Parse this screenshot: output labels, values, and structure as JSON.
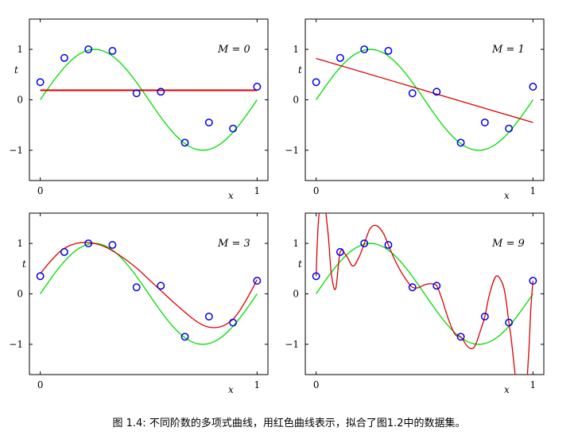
{
  "caption": "图 1.4: 不同阶数的多项式曲线，用红色曲线表示，拟合了图1.2中的数据集。",
  "colors": {
    "truth": "#00dd00",
    "fit": "#dd0000",
    "points": "#0000ee"
  },
  "chart_data": [
    {
      "type": "line",
      "annotation": "M = 0",
      "xlabel": "x",
      "ylabel": "t",
      "xlim": [
        -0.05,
        1.05
      ],
      "ylim": [
        -1.6,
        1.6
      ],
      "xticks": [
        0,
        1
      ],
      "yticks": [
        -1,
        0,
        1
      ],
      "points": {
        "x": [
          0,
          0.111,
          0.222,
          0.333,
          0.444,
          0.556,
          0.667,
          0.778,
          0.889,
          1.0
        ],
        "y": [
          0.35,
          0.83,
          1.0,
          0.97,
          0.13,
          0.16,
          -0.85,
          -0.45,
          -0.57,
          0.26
        ]
      },
      "truth_curve": "sin(2*pi*x)",
      "fit_curve": {
        "x": [
          0,
          1
        ],
        "y": [
          0.19,
          0.19
        ]
      }
    },
    {
      "type": "line",
      "annotation": "M = 1",
      "xlabel": "x",
      "ylabel": "t",
      "xlim": [
        -0.05,
        1.05
      ],
      "ylim": [
        -1.6,
        1.6
      ],
      "xticks": [
        0,
        1
      ],
      "yticks": [
        -1,
        0,
        1
      ],
      "points": {
        "x": [
          0,
          0.111,
          0.222,
          0.333,
          0.444,
          0.556,
          0.667,
          0.778,
          0.889,
          1.0
        ],
        "y": [
          0.35,
          0.83,
          1.0,
          0.97,
          0.13,
          0.16,
          -0.85,
          -0.45,
          -0.57,
          0.26
        ]
      },
      "truth_curve": "sin(2*pi*x)",
      "fit_curve": {
        "x": [
          0,
          1
        ],
        "y": [
          0.82,
          -0.45
        ]
      }
    },
    {
      "type": "line",
      "annotation": "M = 3",
      "xlabel": "x",
      "ylabel": "t",
      "xlim": [
        -0.05,
        1.05
      ],
      "ylim": [
        -1.6,
        1.6
      ],
      "xticks": [
        0,
        1
      ],
      "yticks": [
        -1,
        0,
        1
      ],
      "points": {
        "x": [
          0,
          0.111,
          0.222,
          0.333,
          0.444,
          0.556,
          0.667,
          0.778,
          0.889,
          1.0
        ],
        "y": [
          0.35,
          0.83,
          1.0,
          0.97,
          0.13,
          0.16,
          -0.85,
          -0.45,
          -0.57,
          0.26
        ]
      },
      "truth_curve": "sin(2*pi*x)",
      "fit_curve": {
        "x": [
          0,
          0.05,
          0.1,
          0.15,
          0.2,
          0.25,
          0.3,
          0.35,
          0.4,
          0.45,
          0.5,
          0.55,
          0.6,
          0.65,
          0.7,
          0.75,
          0.8,
          0.85,
          0.9,
          0.95,
          1.0
        ],
        "y": [
          0.4,
          0.66,
          0.87,
          0.98,
          1.02,
          1.0,
          0.93,
          0.81,
          0.66,
          0.49,
          0.29,
          0.09,
          -0.11,
          -0.3,
          -0.48,
          -0.62,
          -0.67,
          -0.62,
          -0.45,
          -0.12,
          0.28
        ]
      }
    },
    {
      "type": "line",
      "annotation": "M = 9",
      "xlabel": "x",
      "ylabel": "t",
      "xlim": [
        -0.05,
        1.05
      ],
      "ylim": [
        -1.6,
        1.6
      ],
      "xticks": [
        0,
        1
      ],
      "yticks": [
        -1,
        0,
        1
      ],
      "points": {
        "x": [
          0,
          0.111,
          0.222,
          0.333,
          0.444,
          0.556,
          0.667,
          0.778,
          0.889,
          1.0
        ],
        "y": [
          0.35,
          0.83,
          1.0,
          0.97,
          0.13,
          0.16,
          -0.85,
          -0.45,
          -0.57,
          0.26
        ]
      },
      "truth_curve": "sin(2*pi*x)",
      "fit_curve": {
        "x": [
          0,
          0.01,
          0.03,
          0.055,
          0.07,
          0.09,
          0.111,
          0.14,
          0.17,
          0.2,
          0.222,
          0.25,
          0.28,
          0.31,
          0.333,
          0.36,
          0.39,
          0.42,
          0.444,
          0.47,
          0.5,
          0.53,
          0.556,
          0.58,
          0.61,
          0.64,
          0.667,
          0.7,
          0.73,
          0.76,
          0.778,
          0.8,
          0.83,
          0.86,
          0.875,
          0.889,
          0.9,
          0.93,
          0.96,
          0.98,
          0.99,
          1.0
        ],
        "y": [
          0.35,
          1.4,
          2.0,
          1.2,
          0.4,
          0.1,
          0.83,
          0.75,
          0.55,
          0.75,
          1.0,
          1.3,
          1.35,
          1.2,
          0.97,
          0.7,
          0.45,
          0.25,
          0.13,
          0.12,
          0.18,
          0.2,
          0.16,
          -0.1,
          -0.5,
          -0.8,
          -0.85,
          -1.05,
          -1.05,
          -0.7,
          -0.45,
          0.0,
          0.35,
          0.2,
          -0.1,
          -0.57,
          -0.9,
          -2.0,
          -2.3,
          -1.2,
          -0.3,
          0.26
        ]
      }
    }
  ]
}
